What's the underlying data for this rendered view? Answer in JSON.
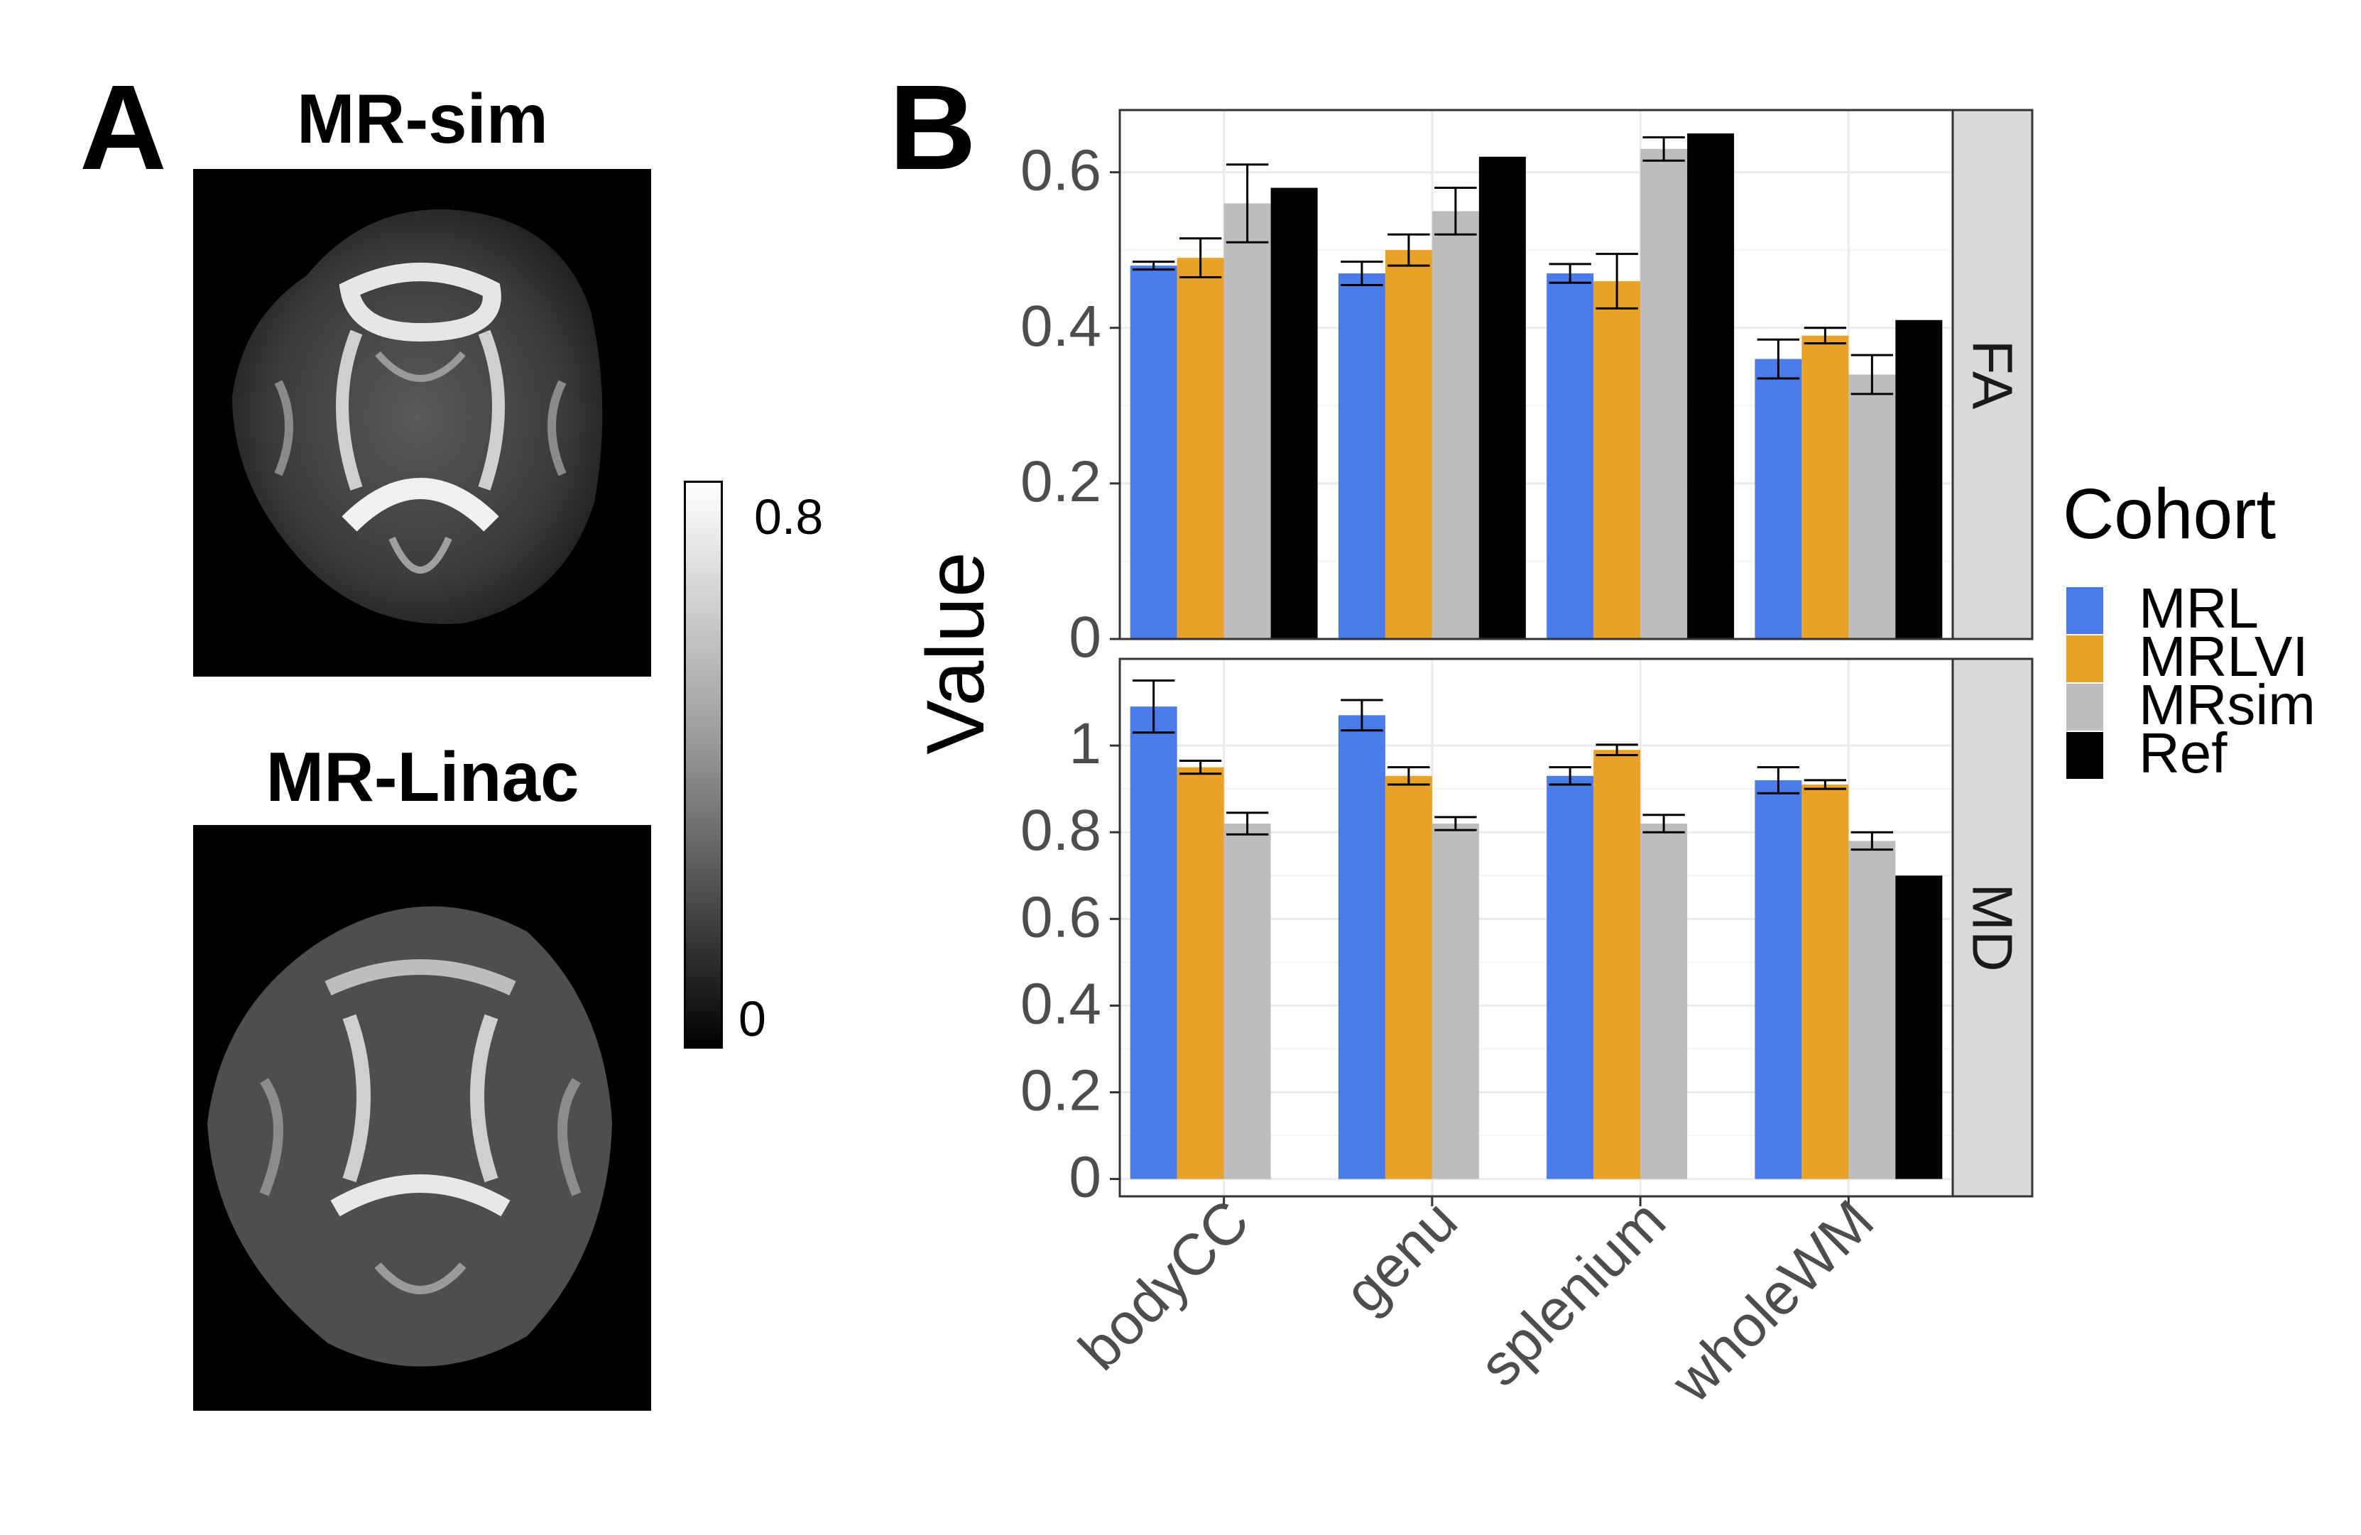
{
  "panel_a": {
    "letter": "A",
    "image_top_title": "MR-sim",
    "image_bottom_title": "MR-Linac",
    "colorbar": {
      "max_label": "0.8",
      "min_label": "0"
    }
  },
  "panel_b": {
    "letter": "B"
  },
  "chart_data": {
    "type": "bar",
    "ylabel": "Value",
    "xlabel": "",
    "categories": [
      "bodyCC",
      "genu",
      "splenium",
      "wholeWM"
    ],
    "legend": {
      "title": "Cohort",
      "position": "right"
    },
    "series_colors": {
      "MRL": "#4a7be8",
      "MRLVI": "#e8a228",
      "MRsim": "#bdbdbd",
      "Ref": "#000000"
    },
    "facets": [
      {
        "strip_label": "FA",
        "ylim": [
          0,
          0.68
        ],
        "ticks": [
          0,
          0.2,
          0.4,
          0.6
        ],
        "tick_labels": [
          "0",
          "0.2",
          "0.4",
          "0.6"
        ],
        "series": [
          {
            "name": "MRL",
            "values": [
              0.48,
              0.47,
              0.47,
              0.36
            ],
            "err": [
              0.005,
              0.015,
              0.012,
              0.025
            ]
          },
          {
            "name": "MRLVI",
            "values": [
              0.49,
              0.5,
              0.46,
              0.39
            ],
            "err": [
              0.025,
              0.02,
              0.035,
              0.01
            ]
          },
          {
            "name": "MRsim",
            "values": [
              0.56,
              0.55,
              0.63,
              0.34
            ],
            "err": [
              0.05,
              0.03,
              0.015,
              0.025
            ]
          },
          {
            "name": "Ref",
            "values": [
              0.58,
              0.62,
              0.65,
              0.41
            ],
            "err": [
              null,
              null,
              null,
              null
            ]
          }
        ]
      },
      {
        "strip_label": "MD",
        "ylim": [
          -0.04,
          1.2
        ],
        "ticks": [
          0,
          0.2,
          0.4,
          0.6,
          0.8,
          1.0
        ],
        "tick_labels": [
          "0",
          "0.2",
          "0.4",
          "0.6",
          "0.8",
          "1"
        ],
        "series": [
          {
            "name": "MRL",
            "values": [
              1.09,
              1.07,
              0.93,
              0.92
            ],
            "err": [
              0.06,
              0.035,
              0.02,
              0.03
            ]
          },
          {
            "name": "MRLVI",
            "values": [
              0.95,
              0.93,
              0.99,
              0.91
            ],
            "err": [
              0.015,
              0.02,
              0.012,
              0.01
            ]
          },
          {
            "name": "MRsim",
            "values": [
              0.82,
              0.82,
              0.82,
              0.78
            ],
            "err": [
              0.025,
              0.015,
              0.02,
              0.02
            ]
          },
          {
            "name": "Ref",
            "values": [
              null,
              null,
              null,
              0.7
            ],
            "err": [
              null,
              null,
              null,
              null
            ]
          }
        ]
      }
    ]
  }
}
